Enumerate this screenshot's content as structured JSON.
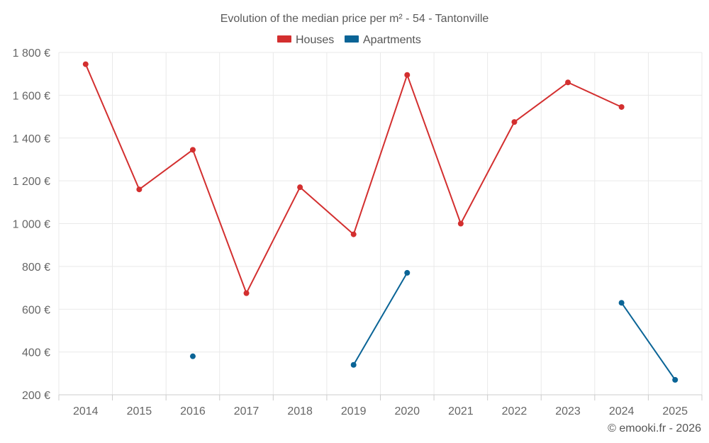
{
  "chart_data": {
    "type": "line",
    "title": "Evolution of the median price per m² - 54 - Tantonville",
    "categories": [
      "2014",
      "2015",
      "2016",
      "2017",
      "2018",
      "2019",
      "2020",
      "2021",
      "2022",
      "2023",
      "2024",
      "2025"
    ],
    "ylim": [
      200,
      1800
    ],
    "yticks": [
      200,
      400,
      600,
      800,
      1000,
      1200,
      1400,
      1600,
      1800
    ],
    "ytick_labels": [
      "200 €",
      "400 €",
      "600 €",
      "800 €",
      "1 000 €",
      "1 200 €",
      "1 400 €",
      "1 600 €",
      "1 800 €"
    ],
    "grid": true,
    "legend_position": "top",
    "series": [
      {
        "name": "Houses",
        "color": "#d32f2f",
        "values": [
          1745,
          1160,
          1345,
          675,
          1170,
          950,
          1695,
          1000,
          1475,
          1660,
          1545,
          null
        ]
      },
      {
        "name": "Apartments",
        "color": "#0a6496",
        "values": [
          null,
          null,
          380,
          null,
          null,
          340,
          770,
          null,
          null,
          null,
          630,
          270
        ]
      }
    ]
  },
  "credit": "© emooki.fr - 2026"
}
